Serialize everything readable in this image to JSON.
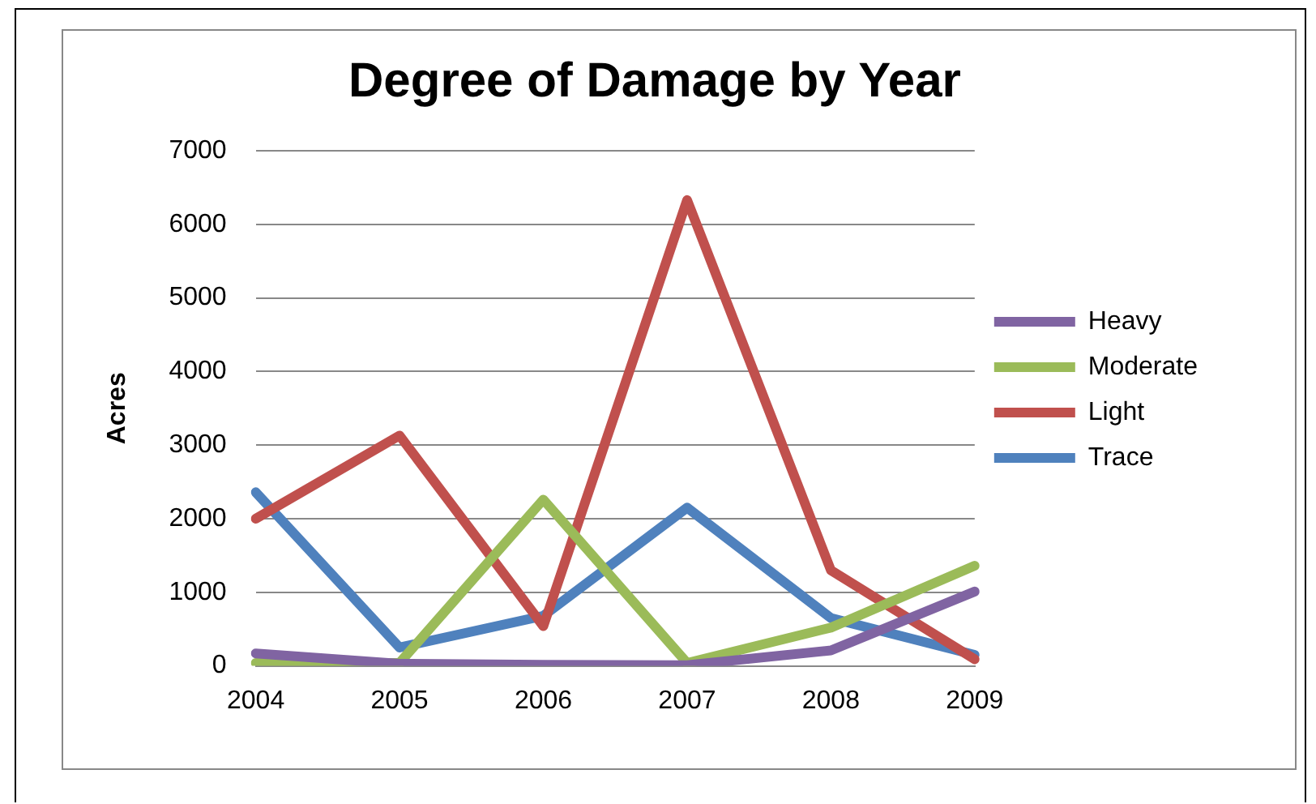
{
  "chart_data": {
    "type": "line",
    "title": "Degree of Damage by Year",
    "ylabel": "Acres",
    "categories": [
      "2004",
      "2005",
      "2006",
      "2007",
      "2008",
      "2009"
    ],
    "series": [
      {
        "name": "Heavy",
        "color": "#8064a2",
        "values": [
          170,
          30,
          15,
          10,
          210,
          1010
        ]
      },
      {
        "name": "Moderate",
        "color": "#9bbb59",
        "values": [
          40,
          40,
          2260,
          40,
          520,
          1360
        ]
      },
      {
        "name": "Light",
        "color": "#c0504d",
        "values": [
          2000,
          3130,
          540,
          6330,
          1300,
          90
        ]
      },
      {
        "name": "Trace",
        "color": "#4f81bd",
        "values": [
          2360,
          250,
          680,
          2150,
          650,
          150
        ]
      }
    ],
    "ylim": [
      0,
      7000
    ],
    "yticks": [
      0,
      1000,
      2000,
      3000,
      4000,
      5000,
      6000,
      7000
    ],
    "grid": "y",
    "legend": "right",
    "marker": "none",
    "line_style": "solid"
  }
}
